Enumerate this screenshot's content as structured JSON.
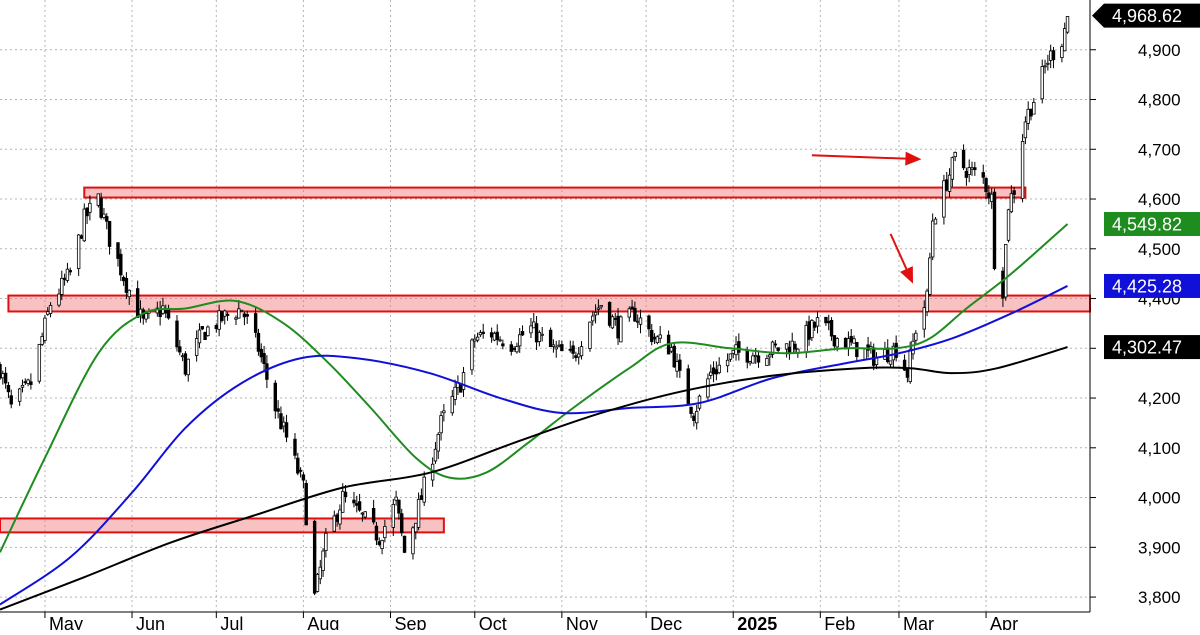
{
  "chart_data": {
    "type": "candlestick",
    "title": "",
    "xlabel": "",
    "ylabel": "",
    "ylim": [
      3770,
      5000
    ],
    "y_ticks": [
      3800,
      3900,
      4000,
      4100,
      4200,
      4300,
      4400,
      4500,
      4600,
      4700,
      4800,
      4900
    ],
    "y_tick_labels": [
      "3,800",
      "3,900",
      "4,000",
      "4,100",
      "4,200",
      "4,300",
      "4,400",
      "4,500",
      "4,600",
      "4,700",
      "4,800",
      "4,900"
    ],
    "x_start": "2024-04-15",
    "x_end": "2025-05-08",
    "month_labels": [
      {
        "date": "2024-05-01",
        "label": "May",
        "bold": false
      },
      {
        "date": "2024-06-01",
        "label": "Jun",
        "bold": false
      },
      {
        "date": "2024-07-01",
        "label": "Jul",
        "bold": false
      },
      {
        "date": "2024-08-01",
        "label": "Aug",
        "bold": false
      },
      {
        "date": "2024-09-01",
        "label": "Sep",
        "bold": false
      },
      {
        "date": "2024-10-01",
        "label": "Oct",
        "bold": false
      },
      {
        "date": "2024-11-01",
        "label": "Nov",
        "bold": false
      },
      {
        "date": "2024-12-01",
        "label": "Dec",
        "bold": false
      },
      {
        "date": "2025-01-01",
        "label": "2025",
        "bold": true
      },
      {
        "date": "2025-02-01",
        "label": "Feb",
        "bold": false
      },
      {
        "date": "2025-03-01",
        "label": "Mar",
        "bold": false
      },
      {
        "date": "2025-04-01",
        "label": "Apr",
        "bold": false
      }
    ],
    "grid": true,
    "price_tags": [
      {
        "value": 4968.62,
        "label": "4,968.62",
        "color": "#000000",
        "style": "arrow"
      },
      {
        "value": 4549.82,
        "label": "4,549.82",
        "color": "#1e8c1e",
        "style": "box"
      },
      {
        "value": 4425.28,
        "label": "4,425.28",
        "color": "#1010d8",
        "style": "box"
      },
      {
        "value": 4302.47,
        "label": "4,302.47",
        "color": "#000000",
        "style": "box"
      }
    ],
    "price_anchors": [
      [
        "2024-04-15",
        4260
      ],
      [
        "2024-04-19",
        4180
      ],
      [
        "2024-04-26",
        4230
      ],
      [
        "2024-05-03",
        4390
      ],
      [
        "2024-05-10",
        4450
      ],
      [
        "2024-05-15",
        4560
      ],
      [
        "2024-05-20",
        4600
      ],
      [
        "2024-05-24",
        4520
      ],
      [
        "2024-05-30",
        4430
      ],
      [
        "2024-06-05",
        4350
      ],
      [
        "2024-06-12",
        4380
      ],
      [
        "2024-06-20",
        4260
      ],
      [
        "2024-06-26",
        4330
      ],
      [
        "2024-07-03",
        4360
      ],
      [
        "2024-07-10",
        4380
      ],
      [
        "2024-07-16",
        4300
      ],
      [
        "2024-07-22",
        4180
      ],
      [
        "2024-07-26",
        4120
      ],
      [
        "2024-08-01",
        4020
      ],
      [
        "2024-08-05",
        3800
      ],
      [
        "2024-08-09",
        3910
      ],
      [
        "2024-08-15",
        4000
      ],
      [
        "2024-08-22",
        3960
      ],
      [
        "2024-08-28",
        3920
      ],
      [
        "2024-09-03",
        3990
      ],
      [
        "2024-09-06",
        3890
      ],
      [
        "2024-09-12",
        4000
      ],
      [
        "2024-09-19",
        4150
      ],
      [
        "2024-09-26",
        4230
      ],
      [
        "2024-10-01",
        4320
      ],
      [
        "2024-10-07",
        4330
      ],
      [
        "2024-10-14",
        4310
      ],
      [
        "2024-10-21",
        4340
      ],
      [
        "2024-10-28",
        4300
      ],
      [
        "2024-11-05",
        4280
      ],
      [
        "2024-11-11",
        4360
      ],
      [
        "2024-11-15",
        4390
      ],
      [
        "2024-11-21",
        4340
      ],
      [
        "2024-11-27",
        4370
      ],
      [
        "2024-12-04",
        4320
      ],
      [
        "2024-12-10",
        4300
      ],
      [
        "2024-12-13",
        4240
      ],
      [
        "2024-12-18",
        4170
      ],
      [
        "2024-12-24",
        4250
      ],
      [
        "2025-01-02",
        4290
      ],
      [
        "2025-01-10",
        4290
      ],
      [
        "2025-01-17",
        4300
      ],
      [
        "2025-01-24",
        4310
      ],
      [
        "2025-01-31",
        4350
      ],
      [
        "2025-02-07",
        4320
      ],
      [
        "2025-02-14",
        4300
      ],
      [
        "2025-02-21",
        4280
      ],
      [
        "2025-02-28",
        4300
      ],
      [
        "2025-03-04",
        4250
      ],
      [
        "2025-03-07",
        4340
      ],
      [
        "2025-03-11",
        4400
      ],
      [
        "2025-03-13",
        4560
      ],
      [
        "2025-03-17",
        4620
      ],
      [
        "2025-03-21",
        4680
      ],
      [
        "2025-03-25",
        4660
      ],
      [
        "2025-03-31",
        4640
      ],
      [
        "2025-04-03",
        4600
      ],
      [
        "2025-04-04",
        4480
      ],
      [
        "2025-04-07",
        4420
      ],
      [
        "2025-04-09",
        4590
      ],
      [
        "2025-04-11",
        4620
      ],
      [
        "2025-04-15",
        4760
      ],
      [
        "2025-04-18",
        4800
      ],
      [
        "2025-04-23",
        4880
      ],
      [
        "2025-04-28",
        4920
      ],
      [
        "2025-04-30",
        4968.62
      ]
    ],
    "series": [
      {
        "color": "#1e8c1e",
        "points": [
          [
            "2024-04-15",
            3890
          ],
          [
            "2024-05-01",
            4080
          ],
          [
            "2024-05-20",
            4290
          ],
          [
            "2024-06-05",
            4370
          ],
          [
            "2024-06-20",
            4380
          ],
          [
            "2024-07-08",
            4395
          ],
          [
            "2024-07-25",
            4350
          ],
          [
            "2024-08-10",
            4270
          ],
          [
            "2024-08-25",
            4180
          ],
          [
            "2024-09-10",
            4080
          ],
          [
            "2024-09-22",
            4040
          ],
          [
            "2024-10-05",
            4050
          ],
          [
            "2024-10-20",
            4110
          ],
          [
            "2024-11-05",
            4180
          ],
          [
            "2024-11-25",
            4260
          ],
          [
            "2024-12-10",
            4310
          ],
          [
            "2024-12-31",
            4300
          ],
          [
            "2025-01-20",
            4290
          ],
          [
            "2025-02-10",
            4300
          ],
          [
            "2025-02-28",
            4300
          ],
          [
            "2025-03-12",
            4320
          ],
          [
            "2025-03-25",
            4380
          ],
          [
            "2025-04-10",
            4450
          ],
          [
            "2025-04-30",
            4549.82
          ]
        ]
      },
      {
        "color": "#1010d8",
        "points": [
          [
            "2024-04-15",
            3785
          ],
          [
            "2024-05-10",
            3880
          ],
          [
            "2024-06-01",
            4010
          ],
          [
            "2024-06-20",
            4140
          ],
          [
            "2024-07-10",
            4230
          ],
          [
            "2024-07-31",
            4280
          ],
          [
            "2024-08-20",
            4280
          ],
          [
            "2024-09-15",
            4250
          ],
          [
            "2024-10-10",
            4200
          ],
          [
            "2024-11-01",
            4170
          ],
          [
            "2024-11-25",
            4180
          ],
          [
            "2024-12-20",
            4190
          ],
          [
            "2025-01-15",
            4240
          ],
          [
            "2025-02-10",
            4270
          ],
          [
            "2025-03-01",
            4290
          ],
          [
            "2025-03-20",
            4320
          ],
          [
            "2025-04-10",
            4370
          ],
          [
            "2025-04-30",
            4425.28
          ]
        ]
      },
      {
        "color": "#000000",
        "points": [
          [
            "2024-04-15",
            3775
          ],
          [
            "2024-05-15",
            3840
          ],
          [
            "2024-06-15",
            3910
          ],
          [
            "2024-07-15",
            3965
          ],
          [
            "2024-08-15",
            4020
          ],
          [
            "2024-09-15",
            4050
          ],
          [
            "2024-10-15",
            4110
          ],
          [
            "2024-11-15",
            4170
          ],
          [
            "2024-12-15",
            4215
          ],
          [
            "2025-01-15",
            4245
          ],
          [
            "2025-02-15",
            4260
          ],
          [
            "2025-03-05",
            4260
          ],
          [
            "2025-03-20",
            4250
          ],
          [
            "2025-04-05",
            4260
          ],
          [
            "2025-04-30",
            4302.47
          ]
        ]
      }
    ],
    "zones": [
      {
        "x_start": "2024-05-15",
        "x_end": "2025-04-15",
        "y_low": 4603,
        "y_high": 4623
      },
      {
        "x_start": "2024-04-18",
        "x_end": "2025-05-08",
        "y_low": 4374,
        "y_high": 4406
      },
      {
        "x_start": "2024-04-15",
        "x_end": "2024-09-20",
        "y_low": 3930,
        "y_high": 3958
      }
    ],
    "annotations": [
      {
        "type": "arrow",
        "from": [
          "2025-01-29",
          4688
        ],
        "to": [
          "2025-03-09",
          4680
        ],
        "color": "#e01010"
      },
      {
        "type": "arrow",
        "from": [
          "2025-02-26",
          4530
        ],
        "to": [
          "2025-03-06",
          4430
        ],
        "color": "#e01010"
      }
    ]
  }
}
